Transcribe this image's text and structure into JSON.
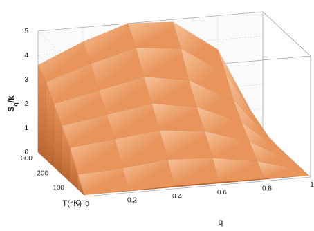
{
  "chart_data": {
    "type": "surface3d",
    "title": "",
    "zlabel": {
      "main": "S",
      "sub": "q",
      "tail": "/k"
    },
    "xlabel": "q",
    "ylabel": "T(°K)",
    "xlim": [
      0,
      1
    ],
    "ylim": [
      0,
      300
    ],
    "zlim": [
      0,
      5
    ],
    "x_ticks": [
      "0",
      "0.2",
      "0.4",
      "0.6",
      "0.8",
      "1"
    ],
    "y_ticks": [
      "0",
      "100",
      "200",
      "300"
    ],
    "z_ticks": [
      "0",
      "1",
      "2",
      "3",
      "4",
      "5"
    ],
    "grid": true,
    "surface_color": "#e8945a",
    "surface_highlight": "#f6c29a",
    "surface_shadow": "#b8642f",
    "grid_color": "#c8c8c8",
    "box_color": "#888888",
    "entropy_samples": {
      "q": [
        0.0,
        0.2,
        0.4,
        0.6,
        0.8,
        1.0
      ],
      "T": [
        10,
        50,
        100,
        150,
        200,
        250,
        300
      ],
      "S": [
        [
          0.0,
          0.02,
          0.05,
          0.06,
          0.03,
          0.0
        ],
        [
          0.6,
          0.7,
          0.9,
          0.8,
          0.5,
          0.0
        ],
        [
          1.4,
          1.6,
          1.8,
          1.6,
          1.0,
          0.0
        ],
        [
          2.0,
          2.3,
          2.6,
          2.3,
          1.5,
          0.0
        ],
        [
          2.6,
          3.0,
          3.4,
          3.1,
          2.1,
          0.0
        ],
        [
          3.2,
          3.8,
          4.3,
          4.1,
          2.9,
          0.0
        ],
        [
          3.6,
          4.4,
          5.0,
          4.9,
          3.6,
          0.0
        ]
      ]
    }
  }
}
